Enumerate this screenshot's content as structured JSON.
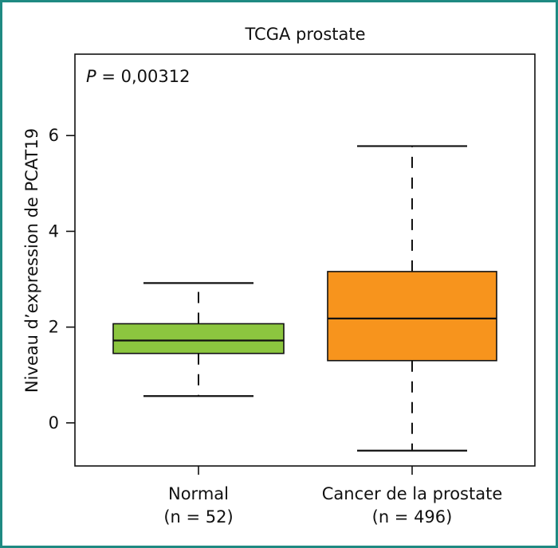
{
  "chart_data": {
    "type": "boxplot",
    "title": "TCGA prostate",
    "ylabel": "Niveau d’expression de PCAT19",
    "ylim": [
      -0.9,
      7.7
    ],
    "yticks": [
      0,
      2,
      4,
      6
    ],
    "ytick_labels": [
      "0",
      "2",
      "4",
      "6"
    ],
    "annotation": {
      "prefix": "P",
      "text": " = 0,00312"
    },
    "categories": [
      {
        "label": "Normal",
        "n_label": "(n = 52)",
        "color": "#8cc63f",
        "whisker_low": 0.56,
        "q1": 1.45,
        "median": 1.72,
        "q3": 2.07,
        "whisker_high": 2.92
      },
      {
        "label": "Cancer de la prostate",
        "n_label": "(n = 496)",
        "color": "#f7941d",
        "whisker_low": -0.58,
        "q1": 1.3,
        "median": 2.18,
        "q3": 3.16,
        "whisker_high": 5.78
      }
    ],
    "frame_color": "#1f8a82"
  }
}
